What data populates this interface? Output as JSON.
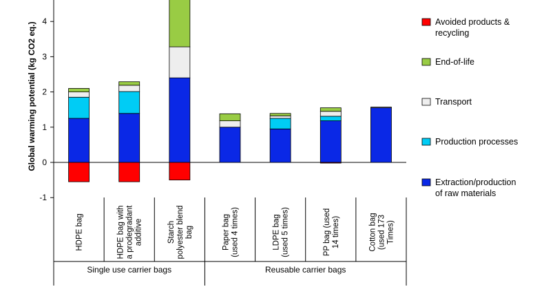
{
  "chart_data": {
    "type": "bar",
    "stacked": true,
    "title": "",
    "ylabel": "Global warming potential (kg CO2 eq.)",
    "ylim": [
      -1,
      4.6
    ],
    "yticks": [
      -1,
      0,
      1,
      2,
      3,
      4
    ],
    "categories": [
      "HDPE bag",
      "HDPE bag with a prodegradant additive",
      "Starch polyester blend bag",
      "Paper bag (used 4 times)",
      "LDPE bag (used 5 times)",
      "PP bag (used 14 times)",
      "Cotton bag (used 173 Times)"
    ],
    "category_label_lines": [
      [
        "HDPE bag"
      ],
      [
        "HDPE bag with",
        "a prodegradant",
        "additive"
      ],
      [
        "Starch",
        "polyester blend",
        "bag"
      ],
      [
        "Paper bag",
        "(used 4 times)"
      ],
      [
        "LDPE bag",
        "(used 5 times)"
      ],
      [
        "PP bag (used",
        "14 times)"
      ],
      [
        "Cotton bag",
        "(used 173",
        "Times)"
      ]
    ],
    "groups": [
      {
        "label": "Single use carrier bags",
        "categories": [
          0,
          1,
          2
        ]
      },
      {
        "label": "Reusable carrier bags",
        "categories": [
          3,
          4,
          5,
          6
        ]
      }
    ],
    "series": [
      {
        "name": "Extraction/production of raw materials",
        "legend_lines": [
          "Extraction/production",
          "of raw materials"
        ],
        "color": "#0a28e6",
        "values": [
          1.25,
          1.39,
          2.4,
          1.0,
          0.95,
          1.18,
          1.55
        ]
      },
      {
        "name": "Production processes",
        "legend_lines": [
          "Production processes"
        ],
        "color": "#00ccf5",
        "values": [
          0.6,
          0.62,
          0.0,
          0.0,
          0.3,
          0.13,
          0.0
        ]
      },
      {
        "name": "Transport",
        "legend_lines": [
          "Transport"
        ],
        "color": "#eeeeee",
        "values": [
          0.15,
          0.18,
          0.88,
          0.18,
          0.07,
          0.14,
          0.02
        ]
      },
      {
        "name": "End-of-life",
        "legend_lines": [
          "End-of-life"
        ],
        "color": "#99cc44",
        "values": [
          0.1,
          0.1,
          1.4,
          0.2,
          0.07,
          0.1,
          0.0
        ]
      },
      {
        "name": "Avoided products & recycling",
        "legend_lines": [
          "Avoided products &",
          "recycling"
        ],
        "color": "#ff0000",
        "values": [
          -0.55,
          -0.55,
          -0.5,
          0.0,
          0.0,
          -0.02,
          0.0
        ]
      }
    ],
    "legend_order": [
      4,
      3,
      2,
      1,
      0
    ],
    "legend_position": "right",
    "grid": false
  }
}
